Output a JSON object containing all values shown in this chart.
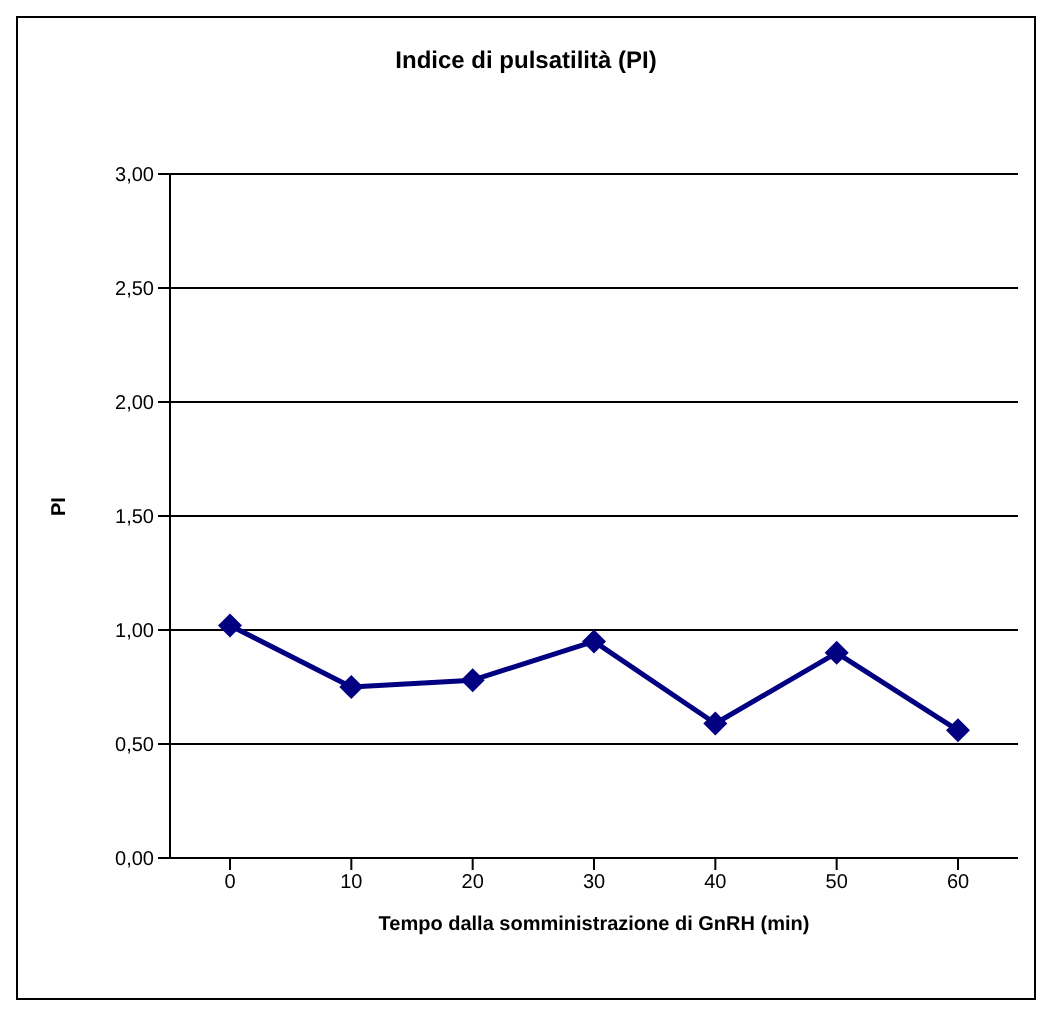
{
  "chart_data": {
    "type": "line",
    "title": "Indice di pulsatilità (PI)",
    "xlabel": "Tempo dalla somministrazione di GnRH (min)",
    "ylabel": "PI",
    "categories": [
      "0",
      "10",
      "20",
      "30",
      "40",
      "50",
      "60"
    ],
    "series": [
      {
        "color": "#000080",
        "values": [
          1.02,
          0.75,
          0.78,
          0.95,
          0.59,
          0.9,
          0.56
        ]
      }
    ],
    "ylim": [
      0,
      3
    ],
    "yticks": [
      {
        "value": 0,
        "label": "0,00"
      },
      {
        "value": 0.5,
        "label": "0,50"
      },
      {
        "value": 1,
        "label": "1,00"
      },
      {
        "value": 1.5,
        "label": "1,50"
      },
      {
        "value": 2,
        "label": "2,00"
      },
      {
        "value": 2.5,
        "label": "2,50"
      },
      {
        "value": 3,
        "label": "3,00"
      }
    ],
    "grid": "y",
    "marker": "diamond",
    "legend": false
  }
}
